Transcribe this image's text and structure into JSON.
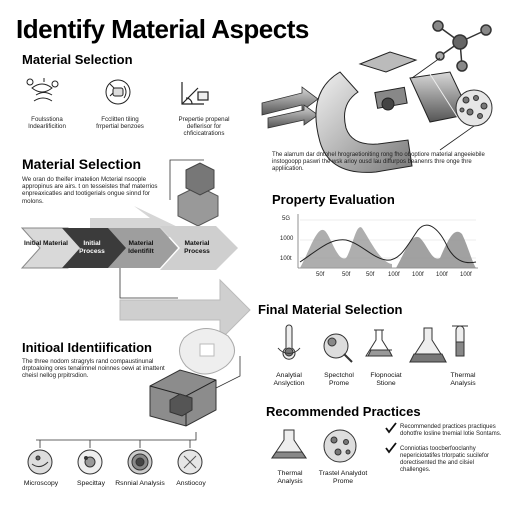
{
  "header": {
    "title": "Identify Material Aspects"
  },
  "selection_top": {
    "heading": "Material Selection",
    "items": [
      {
        "label": "Foulsstiona Indearlificition",
        "icon": "molecule-fingerprint-icon"
      },
      {
        "label": "Fcclitten tiling frrpertial benzoes",
        "icon": "gear-puzzle-icon"
      },
      {
        "label": "Prepertie propenal deflerisor for chficicatrations",
        "icon": "angle-ruler-icon"
      }
    ]
  },
  "selection_mid": {
    "heading": "Material Selection",
    "body": "We oran do theifer imatelion Mcterial nsoople appropinus are airs. t on tesseistes thaf materrios enpreaxicatles and tootigerials ongue sinnd for molons."
  },
  "process_flow": {
    "steps": [
      "Initial Material",
      "Initial Process",
      "Material Identifilt",
      "Material Process"
    ]
  },
  "hero": {
    "caption": "The alarrum dar dntohel hrograetioniting rong fho oboptiore material angeeiebile instogoopp paswri the wsk arioy ousd lau diffurpos beanenrs thre onge thre appliication."
  },
  "property": {
    "heading": "Property Evaluation",
    "y_ticks": [
      "5G",
      "1000",
      "100t"
    ],
    "x_ticks": [
      "50f",
      "50f",
      "50f",
      "100f",
      "100f",
      "100f",
      "100f"
    ]
  },
  "identification": {
    "heading": "Initioal Identiification",
    "body": "The three nodom stragryls rand compaustinunal drptoaloing ores tenalimnel noinnes oewi at imattent cheisl nellog prpitrsdion."
  },
  "bottom_methods": [
    {
      "label": "Microscopy"
    },
    {
      "label": "Specittay"
    },
    {
      "label": "Rsnnial Analysis"
    },
    {
      "label": "Anstiocoy"
    }
  ],
  "final_selection": {
    "heading": "Final Material Selection",
    "items": [
      {
        "label": "Analytial Anslyction"
      },
      {
        "label": "Spectchol Prome"
      },
      {
        "label": "Flopnociat Stione"
      },
      {
        "label": "Thermal Analysis"
      }
    ]
  },
  "recommended": {
    "heading": "Recommended Practices",
    "items": [
      {
        "label": "Thermal Analysis"
      },
      {
        "label": "Trastel Analydot Prome"
      }
    ],
    "checklist": [
      "Recommended practices practiques dohotfre losline tnemial lotie Sontams.",
      "Conniotias toocberfooclanhy nepericiotatifes trlorpatic sucilefor dorectisented the and cilsiel challenges."
    ]
  }
}
